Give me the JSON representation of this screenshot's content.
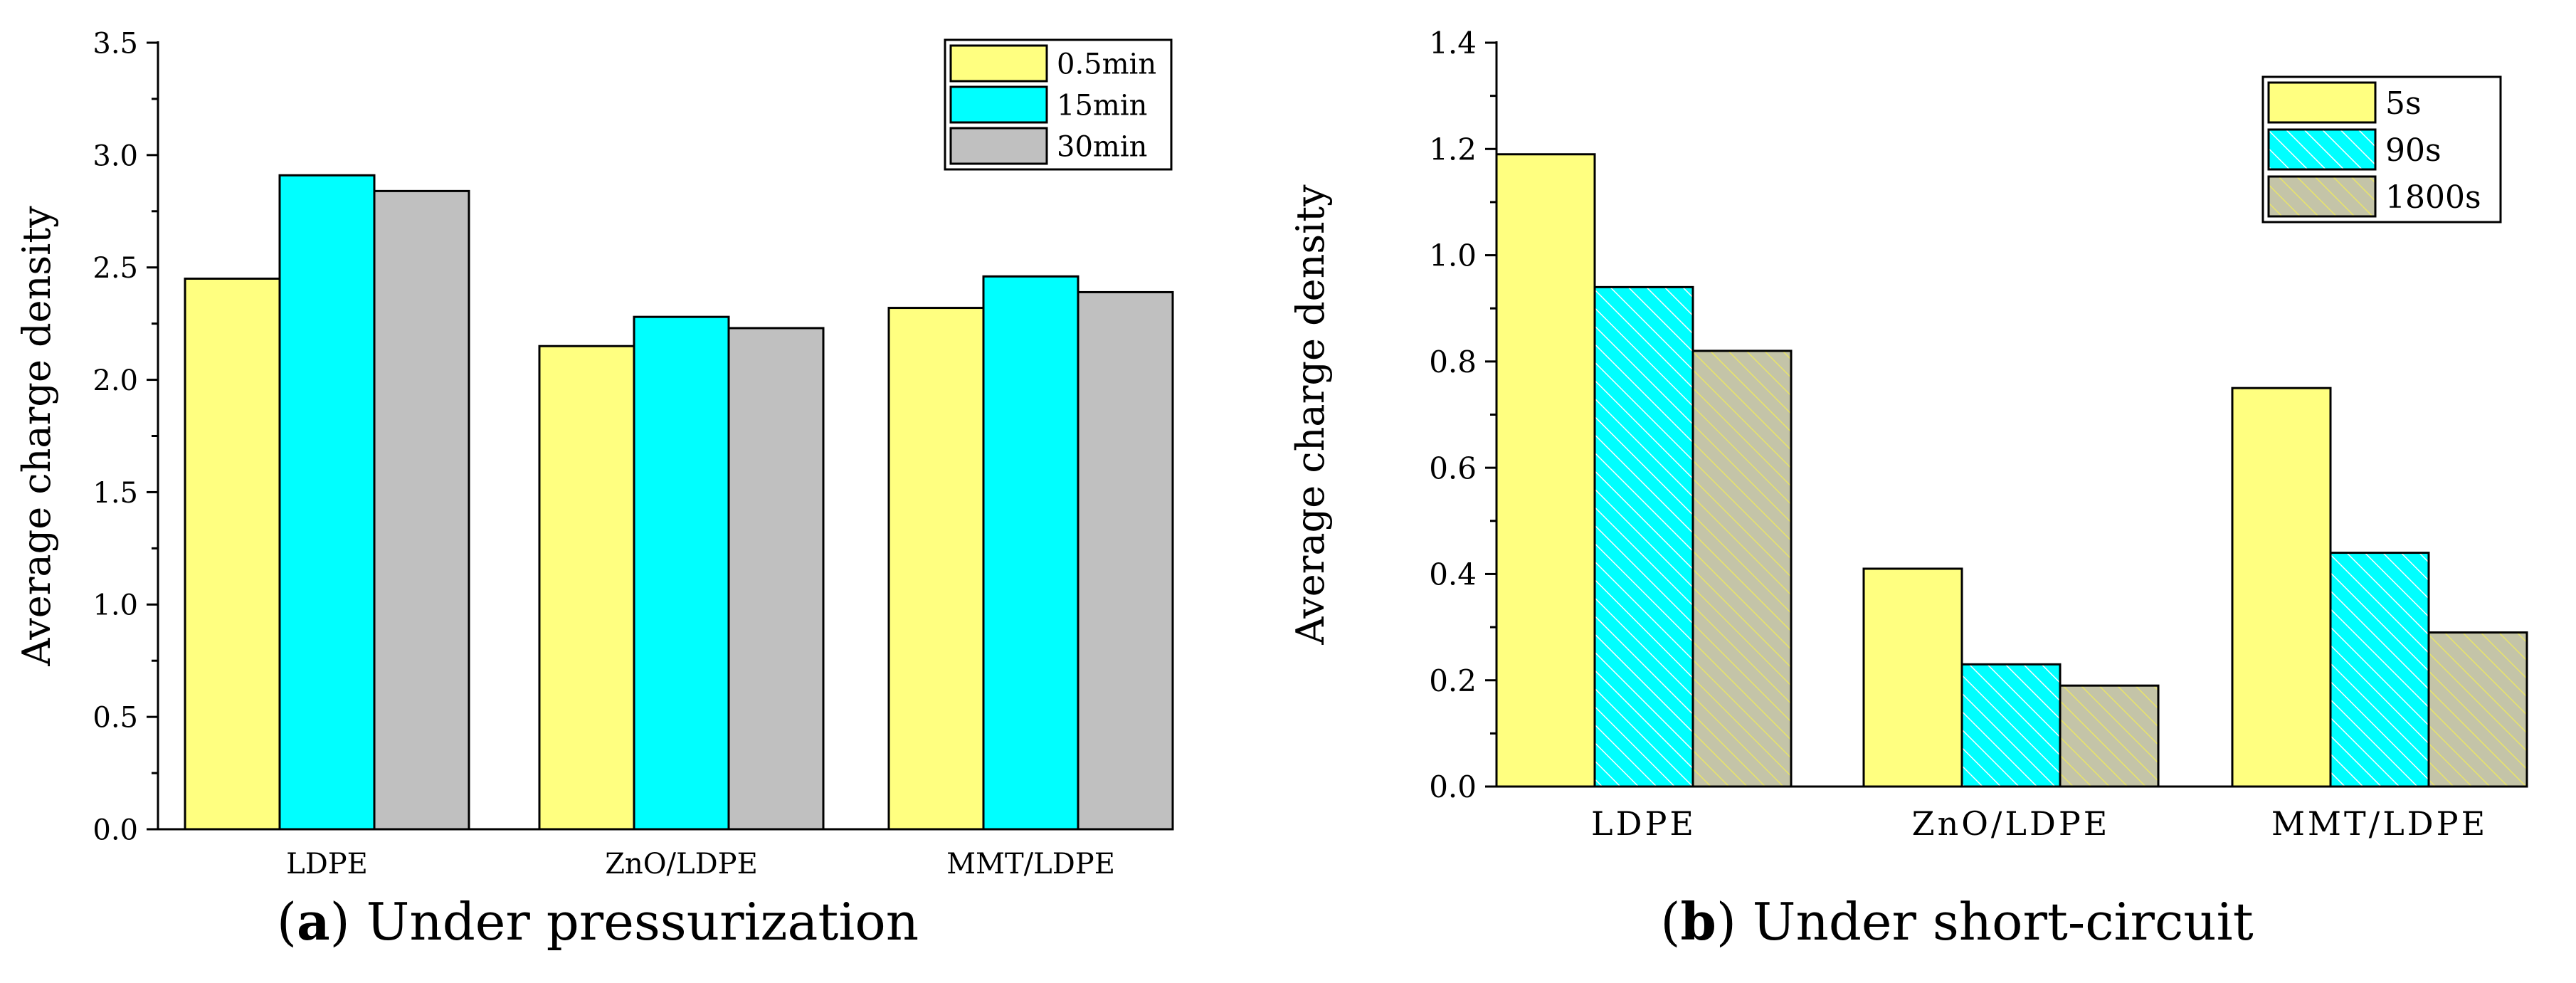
{
  "chart_data": [
    {
      "type": "bar",
      "title": "",
      "xlabel": "",
      "ylabel": "Average charge density",
      "categories": [
        "LDPE",
        "ZnO/LDPE",
        "MMT/LDPE"
      ],
      "series": [
        {
          "name": "0.5min",
          "values": [
            2.45,
            2.15,
            2.32
          ],
          "color": "#ffff80",
          "pattern": "solid"
        },
        {
          "name": "15min",
          "values": [
            2.91,
            2.28,
            2.46
          ],
          "color": "#00ffff",
          "pattern": "solid"
        },
        {
          "name": "30min",
          "values": [
            2.84,
            2.23,
            2.39
          ],
          "color": "#c0c0c0",
          "pattern": "solid"
        }
      ],
      "ylim": [
        0,
        3.5
      ],
      "yticks": [
        0.0,
        0.5,
        1.0,
        1.5,
        2.0,
        2.5,
        3.0,
        3.5
      ],
      "ytick_labels": [
        "0.0",
        "0.5",
        "1.0",
        "1.5",
        "2.0",
        "2.5",
        "3.0",
        "3.5"
      ],
      "legend_position": "top-right",
      "grid": false,
      "caption": {
        "letter": "a",
        "open": "(",
        "close": ")",
        "text": " Under pressurization"
      }
    },
    {
      "type": "bar",
      "title": "",
      "xlabel": "",
      "ylabel": "Average charge density",
      "categories": [
        "LDPE",
        "ZnO/LDPE",
        "MMT/LDPE"
      ],
      "series": [
        {
          "name": "5s",
          "values": [
            1.19,
            0.41,
            0.75
          ],
          "color": "#ffff80",
          "pattern": "solid"
        },
        {
          "name": "90s",
          "values": [
            0.94,
            0.23,
            0.44
          ],
          "color": "#00ffff",
          "pattern": "hatch-white"
        },
        {
          "name": "1800s",
          "values": [
            0.82,
            0.19,
            0.29
          ],
          "color": "#c4c4a8",
          "pattern": "hatch-yellow"
        }
      ],
      "ylim": [
        0,
        1.4
      ],
      "yticks": [
        0.0,
        0.2,
        0.4,
        0.6,
        0.8,
        1.0,
        1.2,
        1.4
      ],
      "ytick_labels": [
        "0.0",
        "0.2",
        "0.4",
        "0.6",
        "0.8",
        "1.0",
        "1.2",
        "1.4"
      ],
      "legend_position": "top-right",
      "grid": false,
      "caption": {
        "letter": "b",
        "open": "(",
        "close": ")",
        "text": " Under short-circuit"
      }
    }
  ]
}
